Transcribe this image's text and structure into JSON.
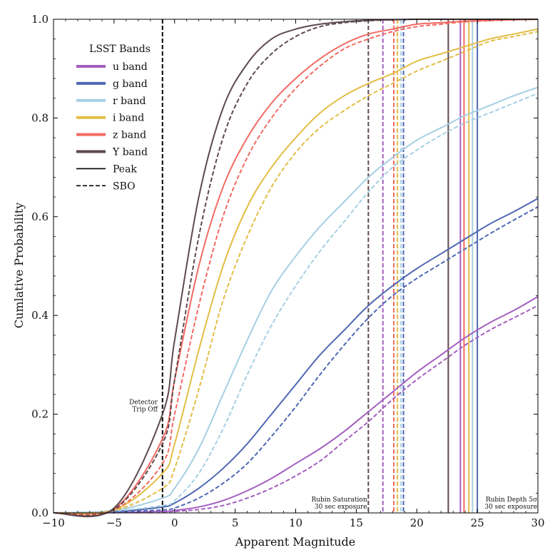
{
  "chart_data": {
    "type": "line",
    "title": "",
    "xlabel": "Apparent Magnitude",
    "ylabel": "Cumlative Probability",
    "xlim": [
      -10,
      30
    ],
    "ylim": [
      0,
      1
    ],
    "xticks": [
      -10,
      -5,
      0,
      5,
      10,
      15,
      20,
      25,
      30
    ],
    "xtick_labels": [
      "−10",
      "−5",
      "0",
      "5",
      "10",
      "15",
      "20",
      "25",
      "30"
    ],
    "yticks": [
      0,
      0.2,
      0.4,
      0.6,
      0.8,
      1.0
    ],
    "ytick_labels": [
      "0.0",
      "0.2",
      "0.4",
      "0.6",
      "0.8",
      "1.0"
    ],
    "grid": false,
    "legend": {
      "title": "LSST Bands",
      "placement": "upper-left",
      "entries": [
        {
          "label": "u band",
          "color": "#a35fbf",
          "style": "color"
        },
        {
          "label": "g band",
          "color": "#4f68b3",
          "style": "color"
        },
        {
          "label": "r band",
          "color": "#a6cfe3",
          "style": "color"
        },
        {
          "label": "i band",
          "color": "#e3bd45",
          "style": "color"
        },
        {
          "label": "z band",
          "color": "#f26a62",
          "style": "color"
        },
        {
          "label": "Y band",
          "color": "#5e4a4d",
          "style": "color"
        },
        {
          "label": "Peak",
          "color": "#000000",
          "style": "solid"
        },
        {
          "label": "SBO",
          "color": "#000000",
          "style": "dashed"
        }
      ]
    },
    "series": [
      {
        "name": "u band (Peak)",
        "color": "#a35fbf",
        "dash": false,
        "x": [
          -10,
          -5,
          -1,
          0,
          2,
          4,
          6,
          8,
          10,
          12,
          14,
          16,
          18,
          20,
          22,
          24,
          26,
          28,
          30
        ],
        "y": [
          0,
          0.001,
          0.003,
          0.005,
          0.012,
          0.025,
          0.045,
          0.07,
          0.1,
          0.13,
          0.165,
          0.205,
          0.245,
          0.285,
          0.32,
          0.355,
          0.385,
          0.41,
          0.438
        ]
      },
      {
        "name": "u band (SBO)",
        "color": "#a35fbf",
        "dash": true,
        "x": [
          -10,
          -5,
          -1,
          0,
          2,
          4,
          6,
          8,
          10,
          12,
          14,
          16,
          18,
          20,
          22,
          24,
          26,
          28,
          30
        ],
        "y": [
          0,
          0.0005,
          0.002,
          0.003,
          0.007,
          0.015,
          0.03,
          0.05,
          0.075,
          0.105,
          0.145,
          0.185,
          0.23,
          0.27,
          0.305,
          0.34,
          0.37,
          0.395,
          0.42
        ]
      },
      {
        "name": "g band (Peak)",
        "color": "#4f68b3",
        "dash": false,
        "x": [
          -10,
          -5,
          -1,
          0,
          2,
          4,
          6,
          8,
          10,
          12,
          14,
          16,
          18,
          20,
          22,
          24,
          26,
          28,
          30
        ],
        "y": [
          0,
          0.003,
          0.012,
          0.02,
          0.05,
          0.09,
          0.14,
          0.2,
          0.26,
          0.32,
          0.37,
          0.42,
          0.46,
          0.495,
          0.525,
          0.555,
          0.585,
          0.61,
          0.637
        ]
      },
      {
        "name": "g band (SBO)",
        "color": "#4f68b3",
        "dash": true,
        "x": [
          -10,
          -5,
          -1,
          0,
          2,
          4,
          6,
          8,
          10,
          12,
          14,
          16,
          18,
          20,
          22,
          24,
          26,
          28,
          30
        ],
        "y": [
          0,
          0.002,
          0.006,
          0.01,
          0.03,
          0.06,
          0.1,
          0.155,
          0.215,
          0.28,
          0.34,
          0.395,
          0.44,
          0.475,
          0.505,
          0.535,
          0.565,
          0.593,
          0.62
        ]
      },
      {
        "name": "r band (Peak)",
        "color": "#a6cfe3",
        "dash": false,
        "x": [
          -10,
          -5,
          -1,
          0,
          2,
          4,
          6,
          8,
          10,
          12,
          14,
          16,
          18,
          20,
          22,
          24,
          26,
          28,
          30
        ],
        "y": [
          0,
          0.005,
          0.03,
          0.05,
          0.13,
          0.24,
          0.35,
          0.45,
          0.52,
          0.58,
          0.63,
          0.68,
          0.72,
          0.755,
          0.78,
          0.805,
          0.825,
          0.845,
          0.862
        ]
      },
      {
        "name": "r band (SBO)",
        "color": "#a6cfe3",
        "dash": true,
        "x": [
          -10,
          -5,
          -1,
          0,
          2,
          4,
          6,
          8,
          10,
          12,
          14,
          16,
          18,
          20,
          22,
          24,
          26,
          28,
          30
        ],
        "y": [
          0,
          0.004,
          0.015,
          0.025,
          0.08,
          0.17,
          0.28,
          0.38,
          0.46,
          0.53,
          0.59,
          0.65,
          0.7,
          0.735,
          0.765,
          0.79,
          0.81,
          0.83,
          0.85
        ]
      },
      {
        "name": "i band (Peak)",
        "color": "#e3bd45",
        "dash": false,
        "x": [
          -10,
          -5,
          -1,
          0,
          2,
          4,
          6,
          8,
          10,
          12,
          14,
          16,
          18,
          20,
          22,
          24,
          26,
          28,
          30
        ],
        "y": [
          0,
          0.006,
          0.08,
          0.14,
          0.33,
          0.5,
          0.62,
          0.7,
          0.76,
          0.81,
          0.845,
          0.87,
          0.89,
          0.915,
          0.93,
          0.945,
          0.96,
          0.97,
          0.98
        ]
      },
      {
        "name": "i band (SBO)",
        "color": "#e3bd45",
        "dash": true,
        "x": [
          -10,
          -5,
          -1,
          0,
          2,
          4,
          6,
          8,
          10,
          12,
          14,
          16,
          18,
          20,
          22,
          24,
          26,
          28,
          30
        ],
        "y": [
          0,
          0.005,
          0.05,
          0.09,
          0.25,
          0.43,
          0.56,
          0.66,
          0.73,
          0.78,
          0.815,
          0.845,
          0.87,
          0.895,
          0.915,
          0.935,
          0.955,
          0.965,
          0.975
        ]
      },
      {
        "name": "z band (Peak)",
        "color": "#f26a62",
        "dash": false,
        "x": [
          -10,
          -5,
          -1,
          0,
          2,
          4,
          6,
          8,
          10,
          12,
          14,
          16,
          18,
          20,
          22,
          24,
          26,
          28,
          30
        ],
        "y": [
          0,
          0.008,
          0.15,
          0.27,
          0.5,
          0.66,
          0.76,
          0.83,
          0.88,
          0.92,
          0.95,
          0.97,
          0.98,
          0.99,
          0.993,
          0.996,
          0.998,
          0.999,
          1.0
        ]
      },
      {
        "name": "z band (SBO)",
        "color": "#f26a62",
        "dash": true,
        "x": [
          -10,
          -5,
          -1,
          0,
          2,
          4,
          6,
          8,
          10,
          12,
          14,
          16,
          18,
          20,
          22,
          24,
          26,
          28,
          30
        ],
        "y": [
          0,
          0.006,
          0.1,
          0.2,
          0.42,
          0.6,
          0.72,
          0.8,
          0.86,
          0.905,
          0.94,
          0.96,
          0.975,
          0.985,
          0.99,
          0.995,
          0.997,
          0.999,
          1.0
        ]
      },
      {
        "name": "Y band (Peak)",
        "color": "#5e4a4d",
        "dash": false,
        "x": [
          -10,
          -5,
          -1,
          0,
          2,
          4,
          6,
          8,
          10,
          12,
          14,
          16,
          18,
          20,
          22,
          24,
          26,
          28,
          30
        ],
        "y": [
          0,
          0.01,
          0.2,
          0.35,
          0.64,
          0.82,
          0.91,
          0.96,
          0.98,
          0.99,
          0.995,
          0.998,
          0.999,
          1.0,
          1.0,
          1.0,
          1.0,
          1.0,
          1.0
        ]
      },
      {
        "name": "Y band (SBO)",
        "color": "#5e4a4d",
        "dash": true,
        "x": [
          -10,
          -5,
          -1,
          0,
          2,
          4,
          6,
          8,
          10,
          12,
          14,
          16,
          18,
          20,
          22,
          24,
          26,
          28,
          30
        ],
        "y": [
          0,
          0.007,
          0.14,
          0.27,
          0.56,
          0.76,
          0.87,
          0.93,
          0.965,
          0.985,
          0.993,
          0.997,
          0.999,
          1.0,
          1.0,
          1.0,
          1.0,
          1.0,
          1.0
        ]
      }
    ],
    "vlines": [
      {
        "x": -1,
        "color": "#000000",
        "dash": true
      },
      {
        "x": 16,
        "color": "#5e4a4d",
        "dash": true
      },
      {
        "x": 17.2,
        "color": "#a35fbf",
        "dash": true
      },
      {
        "x": 18.1,
        "color": "#f26a62",
        "dash": true
      },
      {
        "x": 18.4,
        "color": "#e3bd45",
        "dash": true
      },
      {
        "x": 18.7,
        "color": "#a6cfe3",
        "dash": true
      },
      {
        "x": 18.9,
        "color": "#4f68b3",
        "dash": true
      },
      {
        "x": 22.6,
        "color": "#5e4a4d",
        "dash": false
      },
      {
        "x": 23.6,
        "color": "#a35fbf",
        "dash": false
      },
      {
        "x": 23.9,
        "color": "#f26a62",
        "dash": false
      },
      {
        "x": 24.3,
        "color": "#e3bd45",
        "dash": false
      },
      {
        "x": 24.6,
        "color": "#a6cfe3",
        "dash": false
      },
      {
        "x": 25.0,
        "color": "#4f68b3",
        "dash": false
      }
    ],
    "annotations": [
      {
        "lines": [
          "Detector",
          "Trip Off"
        ],
        "x": -1.4,
        "y": 0.2,
        "anchor": "end"
      },
      {
        "lines": [
          "Rubin Saturation",
          "30 sec exposure"
        ],
        "x": 15.9,
        "y": 0.0,
        "anchor": "end"
      },
      {
        "lines": [
          "Rubin Depth 5σ",
          "30 sec exposure"
        ],
        "x": 29.95,
        "y": 0.0,
        "anchor": "end"
      }
    ]
  }
}
